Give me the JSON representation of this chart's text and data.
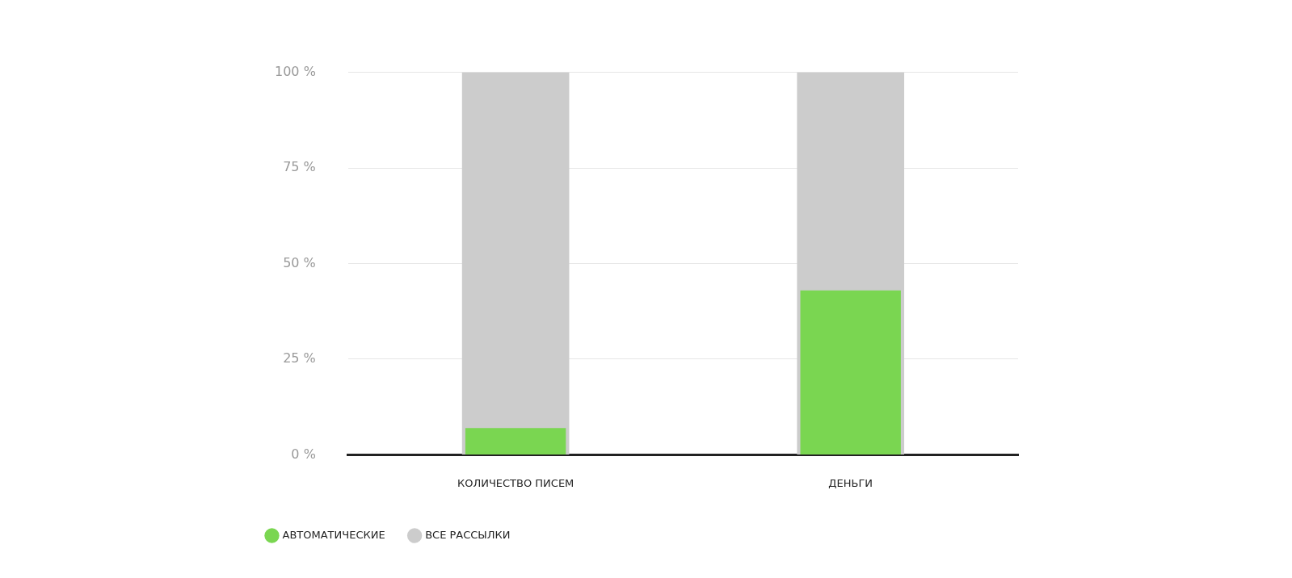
{
  "chart_data": {
    "type": "bar",
    "categories": [
      "КОЛИЧЕСТВО ПИСЕМ",
      "ДЕНЬГИ"
    ],
    "series": [
      {
        "name": "ВСЕ РАССЫЛКИ",
        "color": "#cccccc",
        "values": [
          100,
          100
        ]
      },
      {
        "name": "АВТОМАТИЧЕСКИЕ",
        "color": "#7ad651",
        "values": [
          7,
          43
        ]
      }
    ],
    "ylim": [
      0,
      100
    ],
    "yticks": [
      {
        "value": 0,
        "label": "0 %"
      },
      {
        "value": 25,
        "label": "25 %"
      },
      {
        "value": 50,
        "label": "50 %"
      },
      {
        "value": 75,
        "label": "75 %"
      },
      {
        "value": 100,
        "label": "100 %"
      }
    ],
    "grid": "y",
    "legend": "bottom left"
  }
}
